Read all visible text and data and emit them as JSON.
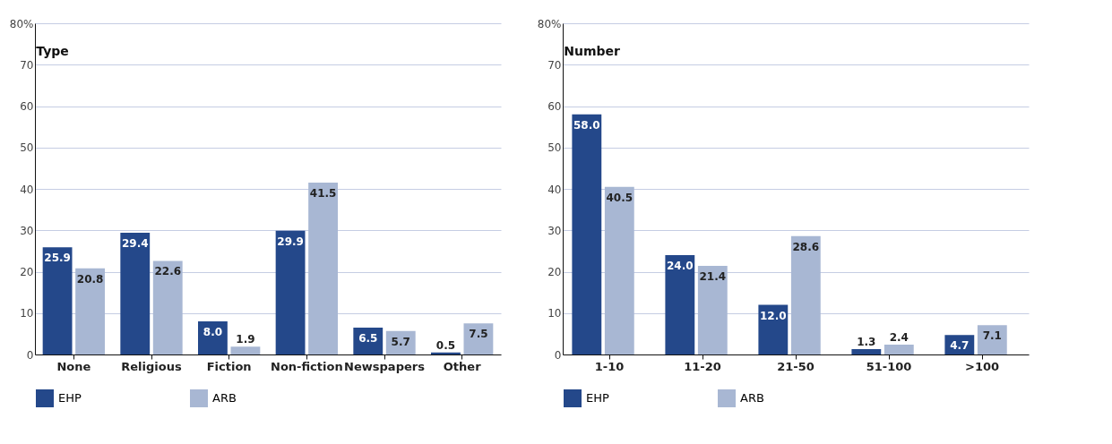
{
  "chart_data": [
    {
      "type": "bar",
      "title": "Type",
      "categories": [
        "None",
        "Religious",
        "Fiction",
        "Non-fiction",
        "Newspapers",
        "Other"
      ],
      "series": [
        {
          "name": "EHP",
          "color": "#24488a",
          "values": [
            25.9,
            29.4,
            8.0,
            29.9,
            6.5,
            0.5
          ],
          "value_labels": [
            "25.9",
            "29.4",
            "8.0",
            "29.9",
            "6.5",
            "0.5"
          ]
        },
        {
          "name": "ARB",
          "color": "#a8b7d3",
          "values": [
            20.8,
            22.6,
            1.9,
            41.5,
            5.7,
            7.5
          ],
          "value_labels": [
            "20.8",
            "22.6",
            "1.9",
            "41.5",
            "5.7",
            "7.5"
          ]
        }
      ],
      "ylim": [
        0,
        80
      ],
      "yticks": [
        0,
        10,
        20,
        30,
        40,
        50,
        60,
        70,
        {
          "value": 80,
          "label": "80%"
        }
      ],
      "grid": "y",
      "legend": "bottom"
    },
    {
      "type": "bar",
      "title": "Number",
      "categories": [
        "1-10",
        "11-20",
        "21-50",
        "51-100",
        ">100"
      ],
      "series": [
        {
          "name": "EHP",
          "color": "#24488a",
          "values": [
            58.0,
            24.0,
            12.0,
            1.3,
            4.7
          ],
          "value_labels": [
            "58.0",
            "24.0",
            "12.0",
            "1.3",
            "4.7"
          ]
        },
        {
          "name": "ARB",
          "color": "#a8b7d3",
          "values": [
            40.5,
            21.4,
            28.6,
            2.4,
            7.1
          ],
          "value_labels": [
            "40.5",
            "21.4",
            "28.6",
            "2.4",
            "7.1"
          ]
        }
      ],
      "ylim": [
        0,
        80
      ],
      "yticks": [
        0,
        10,
        20,
        30,
        40,
        50,
        60,
        70,
        {
          "value": 80,
          "label": "80%"
        }
      ],
      "grid": "y",
      "legend": "bottom"
    }
  ]
}
